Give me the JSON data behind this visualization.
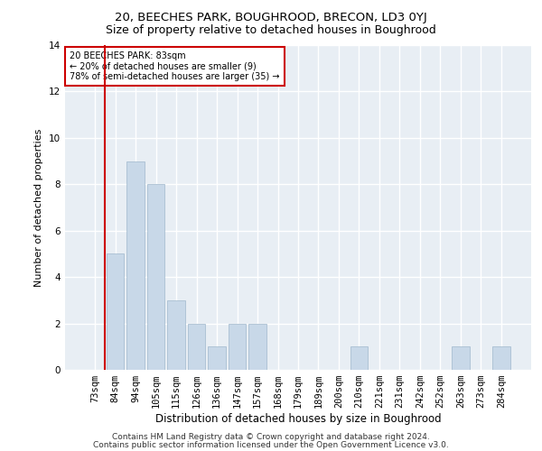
{
  "title": "20, BEECHES PARK, BOUGHROOD, BRECON, LD3 0YJ",
  "subtitle": "Size of property relative to detached houses in Boughrood",
  "xlabel": "Distribution of detached houses by size in Boughrood",
  "ylabel": "Number of detached properties",
  "categories": [
    "73sqm",
    "84sqm",
    "94sqm",
    "105sqm",
    "115sqm",
    "126sqm",
    "136sqm",
    "147sqm",
    "157sqm",
    "168sqm",
    "179sqm",
    "189sqm",
    "200sqm",
    "210sqm",
    "221sqm",
    "231sqm",
    "242sqm",
    "252sqm",
    "263sqm",
    "273sqm",
    "284sqm"
  ],
  "values": [
    0,
    5,
    9,
    8,
    3,
    2,
    1,
    2,
    2,
    0,
    0,
    0,
    0,
    1,
    0,
    0,
    0,
    0,
    1,
    0,
    1
  ],
  "bar_color": "#c8d8e8",
  "bar_edgecolor": "#a0b8cc",
  "redline_index": 1,
  "redline_color": "#cc0000",
  "annotation_box_text": "20 BEECHES PARK: 83sqm\n← 20% of detached houses are smaller (9)\n78% of semi-detached houses are larger (35) →",
  "annotation_box_color": "#cc0000",
  "ylim": [
    0,
    14
  ],
  "yticks": [
    0,
    2,
    4,
    6,
    8,
    10,
    12,
    14
  ],
  "plot_bg_color": "#e8eef4",
  "fig_bg_color": "#ffffff",
  "grid_color": "#ffffff",
  "footer_line1": "Contains HM Land Registry data © Crown copyright and database right 2024.",
  "footer_line2": "Contains public sector information licensed under the Open Government Licence v3.0.",
  "title_fontsize": 9.5,
  "subtitle_fontsize": 9,
  "xlabel_fontsize": 8.5,
  "ylabel_fontsize": 8,
  "tick_fontsize": 7.5,
  "footer_fontsize": 6.5
}
